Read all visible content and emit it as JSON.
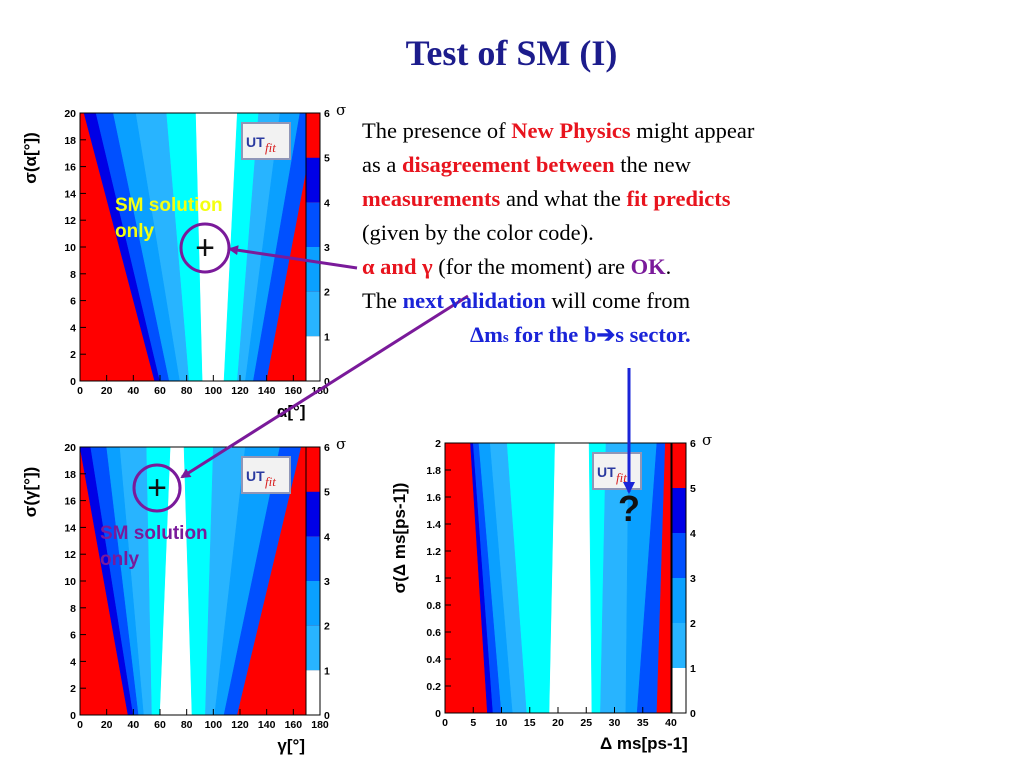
{
  "title": "Test of SM (I)",
  "text": {
    "l1a": "The presence of ",
    "l1b": "New Physics",
    "l1c": " might appear",
    "l2a": "as a ",
    "l2b": "disagreement between",
    "l2c": " the new",
    "l3a": "measurements",
    "l3b": " and what the ",
    "l3c": "fit predicts",
    "l4": "(given by the color code).",
    "l5a": "α and γ",
    "l5b": " (for the moment) are ",
    "l5c": "OK",
    "l5d": ".",
    "l6a": "The ",
    "l6b": "next validation",
    "l6c": " will come from",
    "l7a": "Δm",
    "l7b": "s",
    "l7c": " for the b",
    "l7d": "➔",
    "l7e": "s sector."
  },
  "annotations": {
    "sm1": "SM solution",
    "sm1b": "only",
    "sm2": "SM solution",
    "sm2b": "only",
    "plus": "+",
    "question": "?"
  },
  "colors": {
    "sigma_bands": [
      "#ffffff",
      "#00ffff",
      "#28b4ff",
      "#0aa0ff",
      "#0050ff",
      "#0000e6",
      "#ff0000"
    ],
    "arrow_purple": "#7a1a9a",
    "arrow_blue": "#1a24d8",
    "title": "#1c1c8c"
  },
  "chart_data": [
    {
      "type": "heatmap",
      "xlabel": "α[°]",
      "ylabel": "σ(α[°])",
      "xticks": [
        "0",
        "20",
        "40",
        "60",
        "80",
        "100",
        "120",
        "140",
        "160",
        "180"
      ],
      "yticks": [
        "0",
        "2",
        "4",
        "6",
        "8",
        "10",
        "12",
        "14",
        "16",
        "18",
        "20"
      ],
      "xlim": [
        0,
        180
      ],
      "ylim": [
        0,
        20
      ],
      "color_scale": {
        "ticks": [
          "0",
          "1",
          "2",
          "3",
          "4",
          "5",
          "6"
        ],
        "label": "σ"
      },
      "logo": "UTfit",
      "band_boundaries": [
        {
          "at_y0": [
            56,
            60,
            67,
            75,
            82,
            92,
            108,
            118,
            124,
            130,
            140
          ],
          "at_ymax": [
            3,
            12,
            25,
            42,
            65,
            87,
            118,
            134,
            150,
            165,
            178
          ]
        }
      ],
      "sm_point": {
        "x": 90,
        "y": 10
      }
    },
    {
      "type": "heatmap",
      "xlabel": "γ[°]",
      "ylabel": "σ(γ[°])",
      "xticks": [
        "0",
        "20",
        "40",
        "60",
        "80",
        "100",
        "120",
        "140",
        "160",
        "180"
      ],
      "yticks": [
        "0",
        "2",
        "4",
        "6",
        "8",
        "10",
        "12",
        "14",
        "16",
        "18",
        "20"
      ],
      "xlim": [
        0,
        180
      ],
      "ylim": [
        0,
        20
      ],
      "color_scale": {
        "ticks": [
          "0",
          "1",
          "2",
          "3",
          "4",
          "5",
          "6"
        ],
        "label": "σ"
      },
      "logo": "UTfit",
      "band_boundaries": [
        {
          "at_y0": [
            36,
            40,
            44,
            48,
            54,
            60,
            84,
            94,
            101,
            108,
            118
          ],
          "at_ymax": [
            0,
            8,
            20,
            30,
            50,
            68,
            78,
            100,
            124,
            150,
            166
          ]
        }
      ],
      "sm_point": {
        "x": 60,
        "y": 17
      }
    },
    {
      "type": "heatmap",
      "xlabel": "Δ ms[ps-1]",
      "ylabel": "σ(Δ ms[ps-1])",
      "xticks": [
        "0",
        "5",
        "10",
        "15",
        "20",
        "25",
        "30",
        "35",
        "40"
      ],
      "yticks": [
        "0",
        "0.2",
        "0.4",
        "0.6",
        "0.8",
        "1",
        "1.2",
        "1.4",
        "1.6",
        "1.8",
        "2"
      ],
      "xlim": [
        0,
        40
      ],
      "ylim": [
        0,
        2
      ],
      "color_scale": {
        "ticks": [
          "0",
          "1",
          "2",
          "3",
          "4",
          "5",
          "6"
        ],
        "label": "σ"
      },
      "logo": "UTfit",
      "band_boundaries": [
        {
          "at_y0": [
            7.5,
            8.5,
            10,
            12,
            14.5,
            18.5,
            26,
            27.5,
            32,
            34,
            37.5
          ],
          "at_ymax": [
            4.5,
            5,
            6,
            8,
            11,
            19.5,
            25.5,
            28.5,
            32.5,
            37.5,
            39
          ]
        }
      ]
    }
  ]
}
